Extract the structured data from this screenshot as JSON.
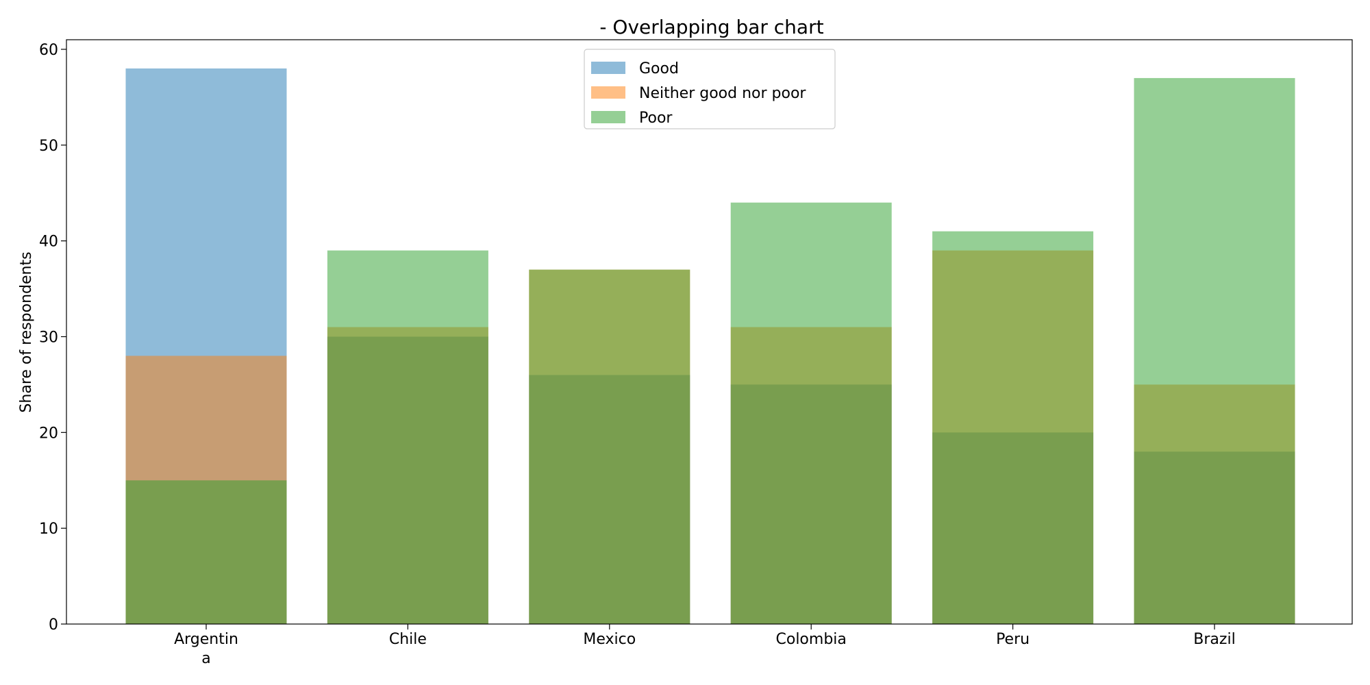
{
  "chart_data": {
    "type": "bar",
    "title": "- Overlapping bar chart",
    "xlabel": "",
    "ylabel": "Share of respondents",
    "categories": [
      "Argentina",
      "Chile",
      "Mexico",
      "Colombia",
      "Peru",
      "Brazil"
    ],
    "category_label_lines": [
      [
        "Argentin",
        "a"
      ],
      [
        "Chile"
      ],
      [
        "Mexico"
      ],
      [
        "Colombia"
      ],
      [
        "Peru"
      ],
      [
        "Brazil"
      ]
    ],
    "series": [
      {
        "name": "Good",
        "color": "#1f77b4",
        "values": [
          58,
          30,
          26,
          25,
          20,
          18
        ]
      },
      {
        "name": "Neither good nor poor",
        "color": "#ff7f0e",
        "values": [
          28,
          31,
          37,
          31,
          39,
          25
        ]
      },
      {
        "name": "Poor",
        "color": "#2ca02c",
        "values": [
          15,
          39,
          37,
          44,
          41,
          57
        ]
      }
    ],
    "bar_opacity": 0.5,
    "overlapping": true,
    "ylim": [
      0,
      61
    ],
    "yticks": [
      0,
      10,
      20,
      30,
      40,
      50,
      60
    ],
    "grid": false,
    "legend_position": "top-center"
  }
}
